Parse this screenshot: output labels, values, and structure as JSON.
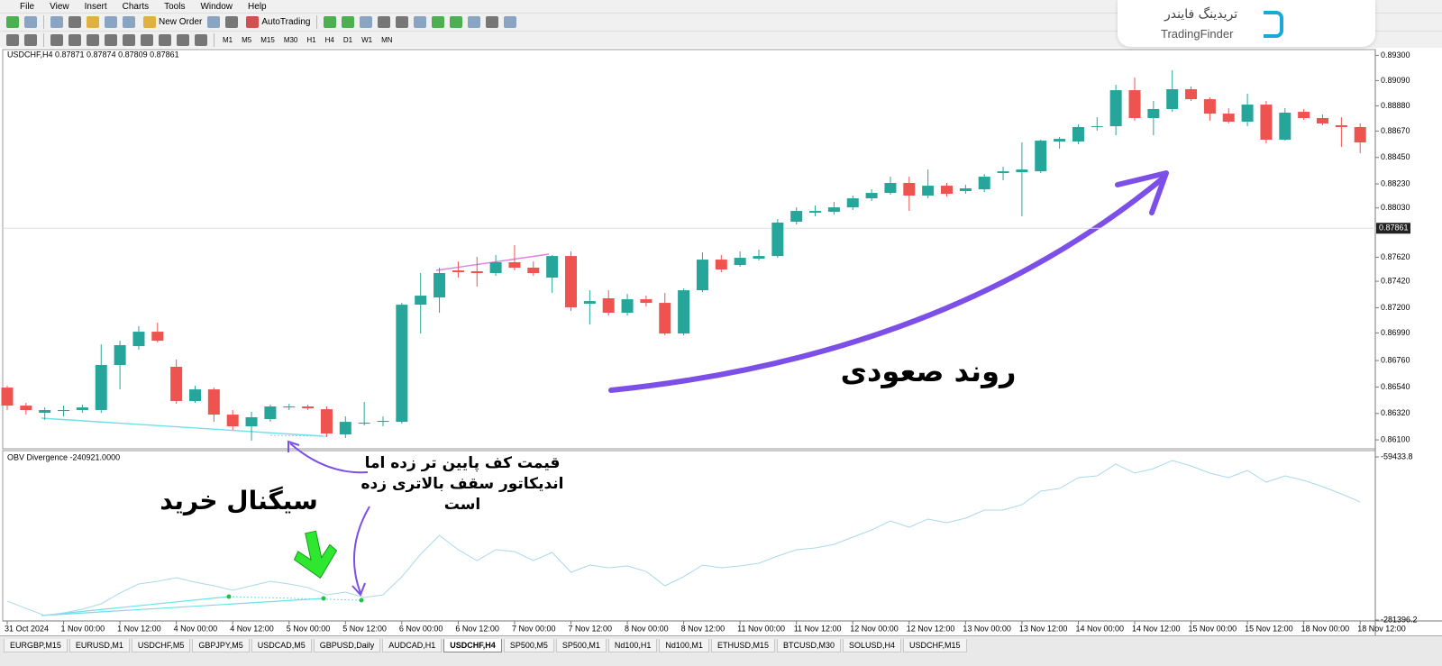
{
  "menu": [
    "File",
    "View",
    "Insert",
    "Charts",
    "Tools",
    "Window",
    "Help"
  ],
  "toolbar": {
    "new_order": "New Order",
    "autotrading": "AutoTrading",
    "timeframes": [
      "M1",
      "M5",
      "M15",
      "M30",
      "H1",
      "H4",
      "D1",
      "W1",
      "MN"
    ]
  },
  "logo": {
    "persian": "تریدینگ فایندر",
    "latin": "TradingFinder"
  },
  "annotations": {
    "uptrend": "روند صعودی",
    "buy_signal": "سیگنال خرید",
    "divergence_note": [
      "قیمت کف پایین تر زده اما",
      "اندیکاتور سقف بالاتری زده",
      "است"
    ]
  },
  "tabs": {
    "items": [
      "EURGBP,M15",
      "EURUSD,M1",
      "USDCHF,M5",
      "GBPJPY,M5",
      "USDCAD,M5",
      "GBPUSD,Daily",
      "AUDCAD,H1",
      "USDCHF,H4",
      "SP500,M5",
      "SP500,M1",
      "Nd100,H1",
      "Nd100,M1",
      "ETHUSD,M15",
      "BTCUSD,M30",
      "SOLUSD,H4",
      "USDCHF,M15"
    ],
    "active": "USDCHF,H4"
  },
  "chart_data": [
    {
      "type": "candlestick",
      "title": "USDCHF,H4  0.87871 0.87874 0.87809 0.87861",
      "up_color": "#26a69a",
      "down_color": "#ef5350",
      "ylim": [
        0.86033,
        0.89348
      ],
      "yticks": [
        {
          "value": 0.893,
          "label": "0.89300"
        },
        {
          "value": 0.8909,
          "label": "0.89090"
        },
        {
          "value": 0.8888,
          "label": "0.88880"
        },
        {
          "value": 0.8867,
          "label": "0.88670"
        },
        {
          "value": 0.8845,
          "label": "0.88450"
        },
        {
          "value": 0.8823,
          "label": "0.88230"
        },
        {
          "value": 0.8803,
          "label": "0.88030"
        },
        {
          "value": 0.8762,
          "label": "0.87620"
        },
        {
          "value": 0.8742,
          "label": "0.87420"
        },
        {
          "value": 0.872,
          "label": "0.87200"
        },
        {
          "value": 0.8699,
          "label": "0.86990"
        },
        {
          "value": 0.8676,
          "label": "0.86760"
        },
        {
          "value": 0.8654,
          "label": "0.86540"
        },
        {
          "value": 0.8632,
          "label": "0.86320"
        },
        {
          "value": 0.861,
          "label": "0.86100"
        }
      ],
      "bid": 0.87861,
      "open": [
        0.86535,
        0.86385,
        0.86325,
        0.8634,
        0.86348,
        0.86348,
        0.86723,
        0.8688,
        0.87,
        0.86708,
        0.86423,
        0.8652,
        0.8631,
        0.86213,
        0.86273,
        0.8637,
        0.86378,
        0.86355,
        0.86145,
        0.86235,
        0.8625,
        0.8625,
        0.87225,
        0.87285,
        0.8751,
        0.87503,
        0.87488,
        0.87578,
        0.87533,
        0.8745,
        0.8763,
        0.87233,
        0.87278,
        0.87158,
        0.8727,
        0.8724,
        0.86985,
        0.87345,
        0.876,
        0.87555,
        0.87608,
        0.8763,
        0.87915,
        0.8799,
        0.87998,
        0.88035,
        0.8811,
        0.88155,
        0.88238,
        0.88133,
        0.88215,
        0.8817,
        0.88185,
        0.8832,
        0.88328,
        0.88335,
        0.88583,
        0.88583,
        0.88703,
        0.8871,
        0.8901,
        0.88778,
        0.88853,
        0.89018,
        0.88935,
        0.88815,
        0.88748,
        0.8889,
        0.88598,
        0.8883,
        0.88778,
        0.88718,
        0.88703
      ],
      "high": [
        0.8655,
        0.86408,
        0.8637,
        0.86385,
        0.86393,
        0.86895,
        0.86925,
        0.87045,
        0.87075,
        0.86768,
        0.8655,
        0.86535,
        0.86348,
        0.86333,
        0.86393,
        0.864,
        0.86393,
        0.86378,
        0.86295,
        0.86415,
        0.86295,
        0.8724,
        0.87488,
        0.87533,
        0.87585,
        0.87623,
        0.87638,
        0.8772,
        0.87585,
        0.87638,
        0.87668,
        0.87345,
        0.87345,
        0.87315,
        0.873,
        0.87323,
        0.8736,
        0.8766,
        0.87638,
        0.87668,
        0.87683,
        0.87938,
        0.88035,
        0.8805,
        0.8808,
        0.88133,
        0.88185,
        0.8829,
        0.8829,
        0.8835,
        0.88238,
        0.88223,
        0.88313,
        0.88373,
        0.88575,
        0.88598,
        0.8862,
        0.88725,
        0.88785,
        0.89055,
        0.89115,
        0.8892,
        0.89175,
        0.8904,
        0.8895,
        0.8886,
        0.8898,
        0.8892,
        0.8886,
        0.88853,
        0.88808,
        0.88785,
        0.88733
      ],
      "low": [
        0.86348,
        0.8631,
        0.86265,
        0.86295,
        0.86325,
        0.86325,
        0.8652,
        0.8685,
        0.8691,
        0.864,
        0.86408,
        0.8625,
        0.86183,
        0.86093,
        0.8625,
        0.86348,
        0.86348,
        0.86123,
        0.86115,
        0.8622,
        0.86213,
        0.86235,
        0.86985,
        0.87158,
        0.8745,
        0.87375,
        0.87465,
        0.8751,
        0.87465,
        0.87323,
        0.87173,
        0.8706,
        0.87135,
        0.87135,
        0.8721,
        0.8697,
        0.8697,
        0.8733,
        0.87495,
        0.8754,
        0.87593,
        0.87615,
        0.87893,
        0.8796,
        0.87975,
        0.88013,
        0.88088,
        0.8814,
        0.88005,
        0.8811,
        0.88125,
        0.88148,
        0.88163,
        0.8826,
        0.8796,
        0.8832,
        0.88523,
        0.8856,
        0.88673,
        0.88635,
        0.88755,
        0.88635,
        0.8883,
        0.8892,
        0.88755,
        0.88733,
        0.8871,
        0.88568,
        0.8859,
        0.88763,
        0.88718,
        0.88538,
        0.88485
      ],
      "close": [
        0.86385,
        0.86348,
        0.86348,
        0.86348,
        0.8637,
        0.86723,
        0.86888,
        0.87,
        0.86925,
        0.86423,
        0.8652,
        0.8631,
        0.86213,
        0.86288,
        0.86378,
        0.86378,
        0.86363,
        0.86153,
        0.8625,
        0.86243,
        0.86258,
        0.87225,
        0.873,
        0.87488,
        0.87495,
        0.87488,
        0.87578,
        0.87533,
        0.87488,
        0.8763,
        0.87203,
        0.87255,
        0.87158,
        0.8727,
        0.8724,
        0.86985,
        0.87345,
        0.876,
        0.87518,
        0.87615,
        0.8763,
        0.87908,
        0.88005,
        0.88005,
        0.88035,
        0.8811,
        0.88155,
        0.88238,
        0.88133,
        0.88215,
        0.88148,
        0.88193,
        0.8829,
        0.88335,
        0.8835,
        0.8859,
        0.88605,
        0.88703,
        0.8871,
        0.8901,
        0.88778,
        0.88853,
        0.89018,
        0.88935,
        0.88815,
        0.88748,
        0.8889,
        0.88598,
        0.88823,
        0.88778,
        0.88733,
        0.88703,
        0.88575
      ]
    },
    {
      "type": "line",
      "title": "OBV Divergence -240921.0000",
      "ylim": [
        -281396.2,
        -59433.8
      ],
      "yticks": [
        -59433.8,
        -281396.2
      ],
      "categories": [
        "31 Oct 2024",
        null,
        null,
        "1 Nov 00:00",
        null,
        null,
        "1 Nov 12:00",
        null,
        null,
        "4 Nov 00:00",
        null,
        null,
        "4 Nov 12:00",
        null,
        null,
        "5 Nov 00:00",
        null,
        null,
        "5 Nov 12:00",
        null,
        null,
        "6 Nov 00:00",
        null,
        null,
        "6 Nov 12:00",
        null,
        null,
        "7 Nov 00:00",
        null,
        null,
        "7 Nov 12:00",
        null,
        null,
        "8 Nov 00:00",
        null,
        null,
        "8 Nov 12:00",
        null,
        null,
        "11 Nov 00:00",
        null,
        null,
        "11 Nov 12:00",
        null,
        null,
        "12 Nov 00:00",
        null,
        null,
        "12 Nov 12:00",
        null,
        null,
        "13 Nov 00:00",
        null,
        null,
        "13 Nov 12:00",
        null,
        null,
        "14 Nov 00:00",
        null,
        null,
        "14 Nov 12:00",
        null,
        null,
        "15 Nov 00:00",
        null,
        null,
        "15 Nov 12:00",
        null,
        null,
        "18 Nov 00:00",
        null,
        null,
        "18 Nov 12:00"
      ],
      "series": [
        {
          "color": "#a9d9ea",
          "values": [
            -255600,
            -265500,
            -275300,
            -271600,
            -266700,
            -259300,
            -244600,
            -232300,
            -228700,
            -223800,
            -229900,
            -234800,
            -240900,
            -234800,
            -228700,
            -232300,
            -237200,
            -247100,
            -243400,
            -250700,
            -247100,
            -222500,
            -191900,
            -166100,
            -185700,
            -200500,
            -185700,
            -188200,
            -200500,
            -189400,
            -216400,
            -206600,
            -210300,
            -207800,
            -215200,
            -234800,
            -222500,
            -206600,
            -210300,
            -207800,
            -204100,
            -194300,
            -185700,
            -183300,
            -178400,
            -168600,
            -158800,
            -146500,
            -155100,
            -144000,
            -149000,
            -142800,
            -131800,
            -131800,
            -124400,
            -106000,
            -102400,
            -87600,
            -85200,
            -69200,
            -81500,
            -75400,
            -64300,
            -71700,
            -81500,
            -87600,
            -77800,
            -93800,
            -85200,
            -91300,
            -99900,
            -109700,
            -120700
          ]
        }
      ]
    }
  ]
}
